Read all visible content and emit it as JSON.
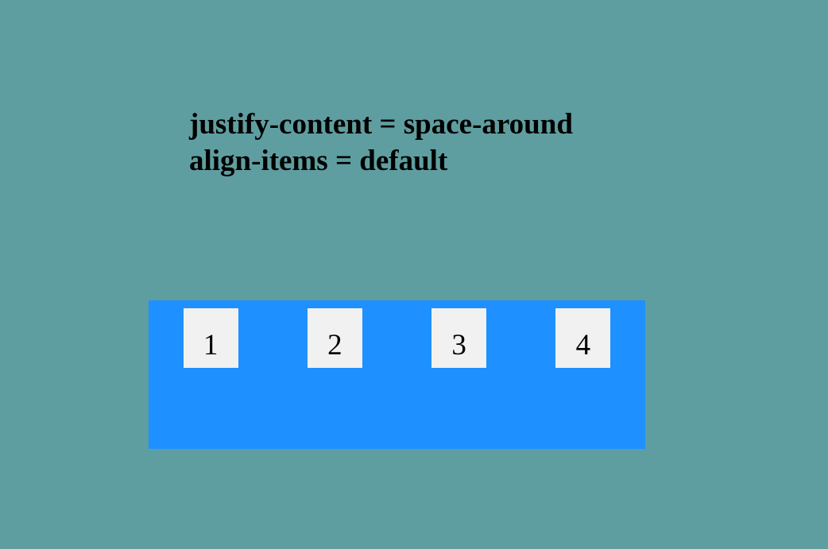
{
  "heading": {
    "line1": "justify-content = space-around",
    "line2": "align-items = default"
  },
  "container": {
    "items": [
      {
        "label": "1"
      },
      {
        "label": "2"
      },
      {
        "label": "3"
      },
      {
        "label": "4"
      }
    ]
  },
  "colors": {
    "page_background": "#5f9ea0",
    "container_background": "#1e90ff",
    "item_background": "#f1f1f1",
    "text": "#000000"
  }
}
